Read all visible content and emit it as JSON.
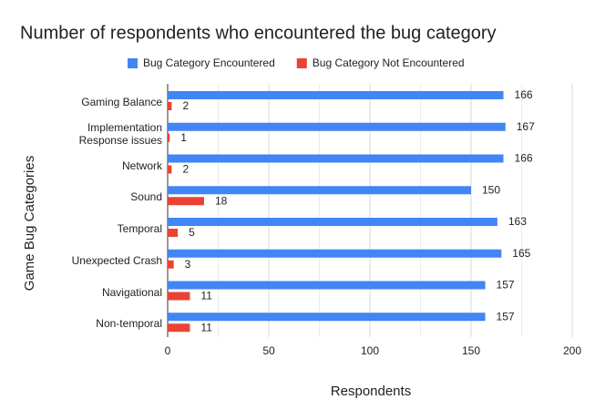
{
  "chart_data": {
    "type": "bar",
    "orientation": "horizontal",
    "title": "Number of respondents who encountered the bug category",
    "x_label": "Respondents",
    "y_label": "Game Bug Categories",
    "categories": [
      "Gaming Balance",
      "Implementation Response issues",
      "Network",
      "Sound",
      "Temporal",
      "Unexpected Crash",
      "Navigational",
      "Non-temporal"
    ],
    "series": [
      {
        "name": "Bug Category Encountered",
        "color": "#4285f4",
        "values": [
          166,
          167,
          166,
          150,
          163,
          165,
          157,
          157
        ]
      },
      {
        "name": "Bug Category Not Encountered",
        "color": "#ea4335",
        "values": [
          2,
          1,
          2,
          18,
          5,
          3,
          11,
          11
        ]
      }
    ],
    "xlim": [
      0,
      200
    ],
    "xticks": [
      0,
      50,
      100,
      150,
      200
    ],
    "xminor": [
      25,
      75,
      125,
      175
    ],
    "grid": true,
    "legend": "top",
    "data_labels": true
  }
}
